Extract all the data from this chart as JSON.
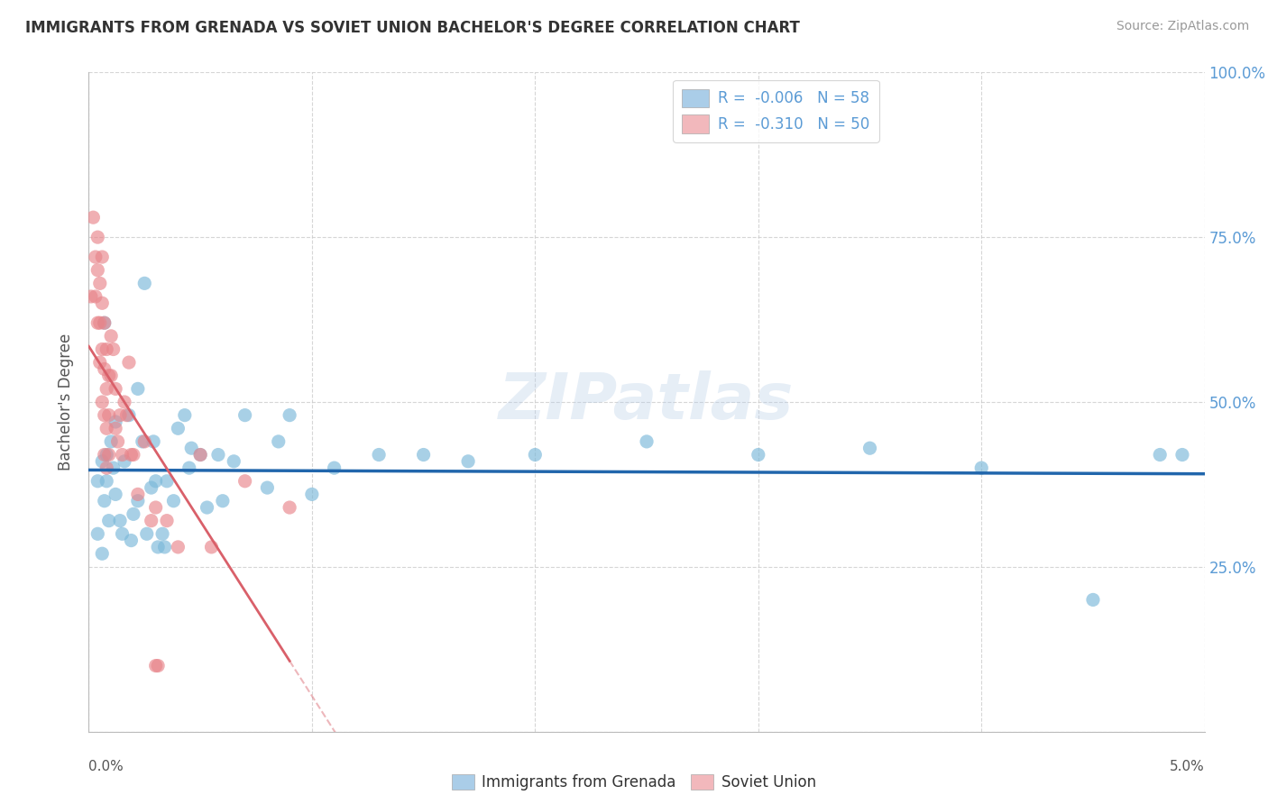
{
  "title": "IMMIGRANTS FROM GRENADA VS SOVIET UNION BACHELOR'S DEGREE CORRELATION CHART",
  "source": "Source: ZipAtlas.com",
  "ylabel": "Bachelor's Degree",
  "watermark": "ZIPatlas",
  "xlim": [
    0.0,
    5.0
  ],
  "ylim": [
    0.0,
    100.0
  ],
  "grenada_R": -0.006,
  "grenada_N": 58,
  "soviet_R": -0.31,
  "soviet_N": 50,
  "grenada_color": "#7ab8d9",
  "soviet_color": "#e8848a",
  "grenada_line_color": "#2166ac",
  "soviet_line_color": "#d9606a",
  "grenada_legend_color": "#aacde8",
  "soviet_legend_color": "#f2b8bc",
  "background_color": "#ffffff",
  "grid_color": "#cccccc",
  "title_color": "#333333",
  "source_color": "#999999",
  "right_axis_color": "#5b9bd5",
  "grenada_points_x": [
    0.06,
    0.04,
    0.07,
    0.04,
    0.08,
    0.06,
    0.1,
    0.09,
    0.12,
    0.08,
    0.11,
    0.07,
    0.15,
    0.12,
    0.18,
    0.14,
    0.2,
    0.16,
    0.22,
    0.19,
    0.25,
    0.22,
    0.28,
    0.24,
    0.3,
    0.26,
    0.33,
    0.29,
    0.35,
    0.31,
    0.38,
    0.34,
    0.4,
    0.43,
    0.46,
    0.45,
    0.5,
    0.53,
    0.58,
    0.6,
    0.65,
    0.7,
    0.8,
    0.85,
    0.9,
    1.0,
    1.1,
    1.3,
    1.5,
    1.7,
    2.0,
    2.5,
    3.0,
    3.5,
    4.0,
    4.5,
    4.8,
    4.9
  ],
  "grenada_points_y": [
    41,
    38,
    62,
    30,
    38,
    27,
    44,
    32,
    36,
    42,
    40,
    35,
    30,
    47,
    48,
    32,
    33,
    41,
    35,
    29,
    68,
    52,
    37,
    44,
    38,
    30,
    30,
    44,
    38,
    28,
    35,
    28,
    46,
    48,
    43,
    40,
    42,
    34,
    42,
    35,
    41,
    48,
    37,
    44,
    48,
    36,
    40,
    42,
    42,
    41,
    42,
    44,
    42,
    43,
    40,
    20,
    42,
    42
  ],
  "soviet_points_x": [
    0.01,
    0.02,
    0.03,
    0.03,
    0.04,
    0.04,
    0.04,
    0.05,
    0.05,
    0.05,
    0.06,
    0.06,
    0.06,
    0.06,
    0.07,
    0.07,
    0.07,
    0.07,
    0.08,
    0.08,
    0.08,
    0.08,
    0.09,
    0.09,
    0.09,
    0.1,
    0.1,
    0.11,
    0.12,
    0.12,
    0.13,
    0.14,
    0.15,
    0.16,
    0.17,
    0.18,
    0.19,
    0.2,
    0.22,
    0.25,
    0.28,
    0.3,
    0.3,
    0.31,
    0.35,
    0.4,
    0.5,
    0.55,
    0.7,
    0.9
  ],
  "soviet_points_y": [
    66,
    78,
    72,
    66,
    75,
    70,
    62,
    68,
    62,
    56,
    72,
    65,
    58,
    50,
    62,
    55,
    48,
    42,
    58,
    52,
    46,
    40,
    54,
    48,
    42,
    60,
    54,
    58,
    46,
    52,
    44,
    48,
    42,
    50,
    48,
    56,
    42,
    42,
    36,
    44,
    32,
    34,
    10,
    10,
    32,
    28,
    42,
    28,
    38,
    34
  ]
}
